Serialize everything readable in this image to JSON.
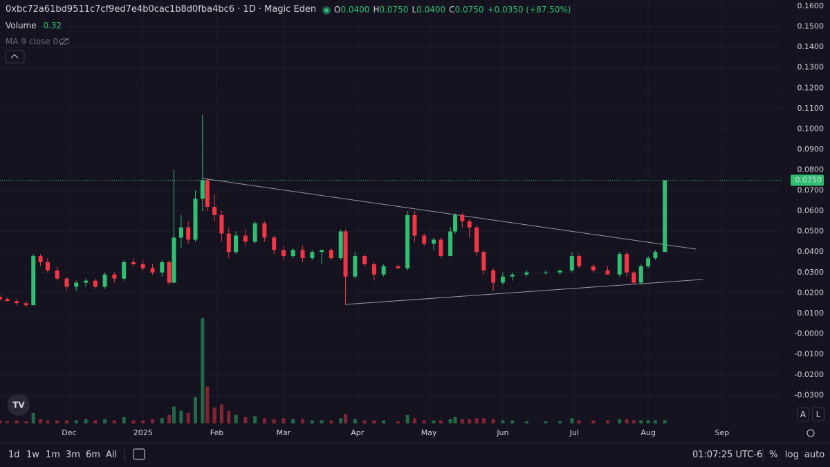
{
  "chart_data": {
    "type": "candlestick",
    "title": "0xbc72a61bd9511c7cf9ed7e4b0cac1b8d0fba4bc6 · 1D · Magic Eden",
    "ohlc_header": [
      {
        "label": "O",
        "value": "0.0400"
      },
      {
        "label": "H",
        "value": "0.0750"
      },
      {
        "label": "L",
        "value": "0.0400"
      },
      {
        "label": "C",
        "value": "0.0750"
      }
    ],
    "change": "+0.0350 (+87.50%)",
    "volume_label": "Volume",
    "volume_value": "0.32",
    "ma_label": "MA 9 close 0",
    "up_color": "#2fbf71",
    "down_color": "#f23645",
    "candles": [
      [
        -29,
        0.018,
        0.019,
        0.016,
        0.017
      ],
      [
        -26,
        0.017,
        0.018,
        0.016,
        0.016
      ],
      [
        -22,
        0.016,
        0.017,
        0.014,
        0.015
      ],
      [
        -18,
        0.015,
        0.016,
        0.013,
        0.014
      ],
      [
        -15,
        0.014,
        0.039,
        0.014,
        0.038
      ],
      [
        -12,
        0.038,
        0.039,
        0.033,
        0.035
      ],
      [
        -9,
        0.035,
        0.037,
        0.03,
        0.031
      ],
      [
        -5,
        0.031,
        0.033,
        0.026,
        0.027
      ],
      [
        -1,
        0.027,
        0.028,
        0.021,
        0.023
      ],
      [
        3,
        0.023,
        0.026,
        0.021,
        0.025
      ],
      [
        7,
        0.025,
        0.027,
        0.023,
        0.026
      ],
      [
        11,
        0.026,
        0.027,
        0.022,
        0.023
      ],
      [
        15,
        0.023,
        0.03,
        0.022,
        0.029
      ],
      [
        19,
        0.029,
        0.03,
        0.025,
        0.027
      ],
      [
        23,
        0.027,
        0.036,
        0.026,
        0.035
      ],
      [
        27,
        0.035,
        0.037,
        0.033,
        0.034
      ],
      [
        31,
        0.034,
        0.036,
        0.031,
        0.032
      ],
      [
        35,
        0.032,
        0.034,
        0.029,
        0.03
      ],
      [
        39,
        0.03,
        0.036,
        0.028,
        0.035
      ],
      [
        42,
        0.035,
        0.036,
        0.024,
        0.025
      ],
      [
        44,
        0.025,
        0.08,
        0.025,
        0.047
      ],
      [
        47,
        0.047,
        0.058,
        0.042,
        0.052
      ],
      [
        50,
        0.052,
        0.055,
        0.044,
        0.046
      ],
      [
        53,
        0.046,
        0.07,
        0.045,
        0.066
      ],
      [
        56,
        0.066,
        0.107,
        0.06,
        0.075
      ],
      [
        58,
        0.075,
        0.076,
        0.06,
        0.062
      ],
      [
        61,
        0.062,
        0.068,
        0.055,
        0.058
      ],
      [
        64,
        0.058,
        0.06,
        0.045,
        0.049
      ],
      [
        67,
        0.049,
        0.052,
        0.037,
        0.04
      ],
      [
        70,
        0.04,
        0.05,
        0.039,
        0.048
      ],
      [
        74,
        0.048,
        0.051,
        0.043,
        0.045
      ],
      [
        78,
        0.045,
        0.055,
        0.044,
        0.054
      ],
      [
        82,
        0.054,
        0.055,
        0.045,
        0.047
      ],
      [
        86,
        0.047,
        0.048,
        0.039,
        0.041
      ],
      [
        90,
        0.041,
        0.043,
        0.036,
        0.038
      ],
      [
        94,
        0.038,
        0.042,
        0.037,
        0.041
      ],
      [
        98,
        0.041,
        0.043,
        0.035,
        0.037
      ],
      [
        102,
        0.037,
        0.041,
        0.036,
        0.04
      ],
      [
        106,
        0.04,
        0.041,
        0.034,
        0.041
      ],
      [
        110,
        0.041,
        0.042,
        0.036,
        0.037
      ],
      [
        114,
        0.037,
        0.051,
        0.036,
        0.05
      ],
      [
        116,
        0.05,
        0.051,
        0.014,
        0.028
      ],
      [
        120,
        0.028,
        0.04,
        0.027,
        0.038
      ],
      [
        124,
        0.038,
        0.039,
        0.033,
        0.034
      ],
      [
        128,
        0.034,
        0.035,
        0.026,
        0.029
      ],
      [
        132,
        0.029,
        0.034,
        0.028,
        0.033
      ],
      [
        138,
        0.033,
        0.034,
        0.032,
        0.032
      ],
      [
        142,
        0.032,
        0.06,
        0.031,
        0.058
      ],
      [
        145,
        0.058,
        0.06,
        0.045,
        0.048
      ],
      [
        149,
        0.048,
        0.049,
        0.043,
        0.044
      ],
      [
        153,
        0.044,
        0.047,
        0.041,
        0.046
      ],
      [
        156,
        0.046,
        0.047,
        0.037,
        0.038
      ],
      [
        160,
        0.038,
        0.052,
        0.038,
        0.05
      ],
      [
        162,
        0.05,
        0.059,
        0.049,
        0.058
      ],
      [
        165,
        0.058,
        0.059,
        0.052,
        0.055
      ],
      [
        168,
        0.055,
        0.056,
        0.047,
        0.052
      ],
      [
        171,
        0.052,
        0.053,
        0.038,
        0.04
      ],
      [
        174,
        0.04,
        0.041,
        0.029,
        0.031
      ],
      [
        178,
        0.031,
        0.032,
        0.021,
        0.025
      ],
      [
        182,
        0.025,
        0.03,
        0.024,
        0.028
      ],
      [
        186,
        0.028,
        0.03,
        0.026,
        0.029
      ],
      [
        192,
        0.029,
        0.031,
        0.028,
        0.03
      ],
      [
        200,
        0.03,
        0.031,
        0.029,
        0.03
      ],
      [
        206,
        0.03,
        0.031,
        0.029,
        0.031
      ],
      [
        211,
        0.031,
        0.04,
        0.03,
        0.038
      ],
      [
        214,
        0.038,
        0.039,
        0.032,
        0.033
      ],
      [
        220,
        0.033,
        0.034,
        0.03,
        0.031
      ],
      [
        226,
        0.031,
        0.033,
        0.029,
        0.029
      ],
      [
        231,
        0.029,
        0.04,
        0.028,
        0.039
      ],
      [
        234,
        0.039,
        0.04,
        0.028,
        0.03
      ],
      [
        237,
        0.03,
        0.031,
        0.024,
        0.025
      ],
      [
        240,
        0.025,
        0.034,
        0.024,
        0.033
      ],
      [
        243,
        0.033,
        0.038,
        0.032,
        0.037
      ],
      [
        246,
        0.037,
        0.041,
        0.036,
        0.04
      ],
      [
        250,
        0.04,
        0.075,
        0.04,
        0.075
      ]
    ],
    "volume": [
      0.3,
      0.2,
      0.3,
      0.2,
      1.0,
      0.4,
      0.3,
      0.3,
      0.3,
      0.3,
      0.4,
      0.3,
      0.4,
      0.3,
      0.6,
      0.3,
      0.3,
      0.4,
      0.5,
      0.8,
      1.6,
      1.2,
      1.0,
      2.5,
      10.0,
      3.5,
      1.5,
      1.8,
      1.2,
      0.8,
      0.6,
      0.7,
      0.5,
      0.4,
      0.5,
      0.4,
      0.4,
      0.3,
      0.3,
      0.3,
      0.5,
      0.9,
      0.4,
      0.3,
      0.3,
      0.3,
      0.2,
      0.8,
      0.5,
      0.3,
      0.3,
      0.3,
      0.4,
      0.6,
      0.4,
      0.4,
      0.5,
      0.5,
      0.4,
      0.3,
      0.3,
      0.2,
      0.2,
      0.2,
      0.5,
      0.3,
      0.3,
      0.3,
      0.4,
      0.4,
      0.3,
      0.3,
      0.3,
      0.3,
      0.32
    ],
    "vlim": [
      0,
      10.5
    ],
    "trendlines": [
      {
        "x": [
          56,
          263
        ],
        "y": [
          0.0759,
          0.0414
        ]
      },
      {
        "x": [
          116,
          266
        ],
        "y": [
          0.0144,
          0.0266
        ]
      }
    ],
    "last_price": {
      "value": 0.075,
      "label": "0.0750"
    },
    "xlim": [
      -29,
      299
    ],
    "xticks": [
      {
        "value": 0,
        "label": "Dec"
      },
      {
        "value": 31,
        "label": "2025"
      },
      {
        "value": 62,
        "label": "Feb"
      },
      {
        "value": 90,
        "label": "Mar"
      },
      {
        "value": 121,
        "label": "Apr"
      },
      {
        "value": 151,
        "label": "May"
      },
      {
        "value": 182,
        "label": "Jun"
      },
      {
        "value": 212,
        "label": "Jul"
      },
      {
        "value": 243,
        "label": "Aug"
      },
      {
        "value": 274,
        "label": "Sep"
      }
    ],
    "ylim": [
      -0.0437,
      0.163
    ],
    "yticks": [
      {
        "value": -0.03,
        "label": "-0.0300"
      },
      {
        "value": -0.02,
        "label": "-0.0200"
      },
      {
        "value": -0.01,
        "label": "-0.0100"
      },
      {
        "value": 0,
        "label": "-0.0000"
      },
      {
        "value": 0.01,
        "label": "0.0100"
      },
      {
        "value": 0.02,
        "label": "0.0200"
      },
      {
        "value": 0.03,
        "label": "0.0300"
      },
      {
        "value": 0.04,
        "label": "0.0400"
      },
      {
        "value": 0.05,
        "label": "0.0500"
      },
      {
        "value": 0.06,
        "label": "0.0600"
      },
      {
        "value": 0.07,
        "label": "0.0700"
      },
      {
        "value": 0.08,
        "label": "0.0800"
      },
      {
        "value": 0.09,
        "label": "0.0900"
      },
      {
        "value": 0.1,
        "label": "0.1000"
      },
      {
        "value": 0.11,
        "label": "0.1100"
      },
      {
        "value": 0.12,
        "label": "0.1200"
      },
      {
        "value": 0.13,
        "label": "0.1300"
      },
      {
        "value": 0.14,
        "label": "0.1400"
      },
      {
        "value": 0.15,
        "label": "0.1500"
      },
      {
        "value": 0.16,
        "label": "0.1600"
      }
    ],
    "grid": true,
    "timeframes": [
      "1d",
      "1w",
      "1m",
      "3m",
      "6m",
      "All"
    ],
    "clock": "01:07:25 UTC-6",
    "scale_buttons": [
      "%",
      "log",
      "auto"
    ],
    "axis_buttons": [
      "A",
      "L"
    ]
  }
}
